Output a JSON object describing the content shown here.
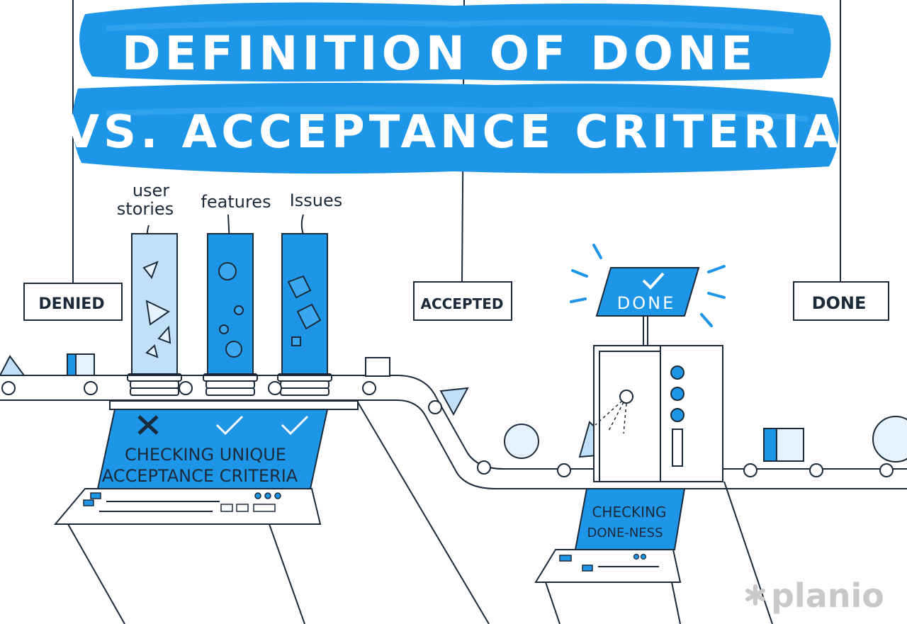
{
  "title": {
    "line1": "DEFINITION OF DONE",
    "line2": "VS. ACCEPTANCE CRITERIA"
  },
  "columns": [
    {
      "label_lines": [
        "user",
        "stories"
      ],
      "icon": "triangle-icon"
    },
    {
      "label_lines": [
        "features"
      ],
      "icon": "circle-icon"
    },
    {
      "label_lines": [
        "Issues"
      ],
      "icon": "cube-icon"
    }
  ],
  "signs": {
    "denied": "DENIED",
    "accepted": "ACCEPTED",
    "done": "DONE"
  },
  "monitor": {
    "text": "DONE",
    "icon": "checkmark-icon"
  },
  "acceptance_console": {
    "marks": [
      "cross-icon",
      "checkmark-icon",
      "checkmark-icon"
    ],
    "line1": "CHECKING UNIQUE",
    "line2": "ACCEPTANCE CRITERIA"
  },
  "doneness_console": {
    "line1": "CHECKING",
    "line2": "DONE-NESS"
  },
  "logo": {
    "text": "planio",
    "icon": "asterisk-icon"
  },
  "colors": {
    "accent": "#1e96e8",
    "accent_light": "#bfe0f7",
    "ink": "#1b2a3a"
  }
}
